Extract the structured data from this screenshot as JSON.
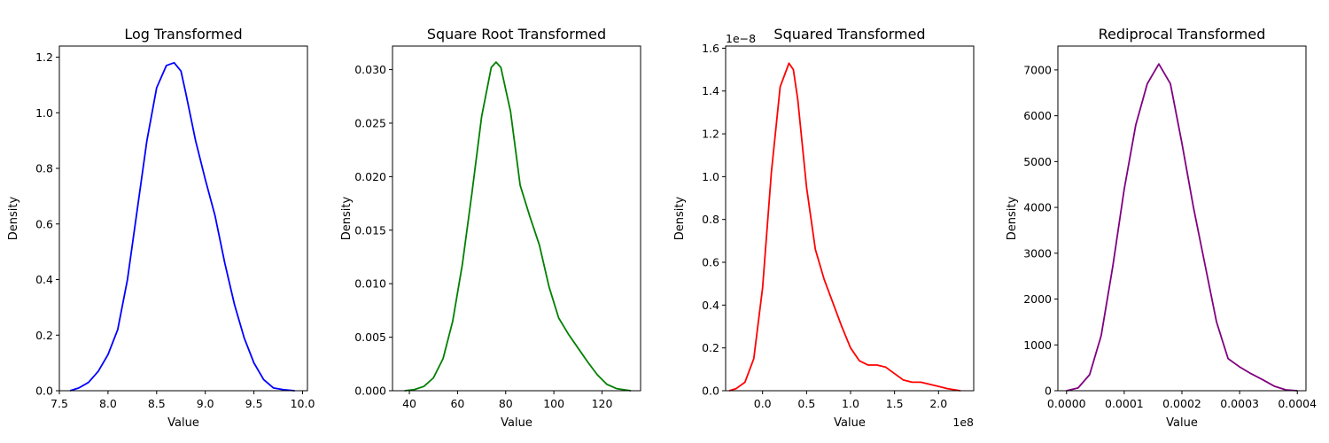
{
  "chart_data": [
    {
      "type": "line",
      "title": "Log Transformed",
      "xlabel": "Value",
      "ylabel": "Density",
      "color": "#0000ff",
      "xlim": [
        7.5,
        10.05
      ],
      "ylim": [
        0,
        1.24
      ],
      "xticks": [
        7.5,
        8.0,
        8.5,
        9.0,
        9.5,
        10.0
      ],
      "xtick_labels": [
        "7.5",
        "8.0",
        "8.5",
        "9.0",
        "9.5",
        "10.0"
      ],
      "yticks": [
        0,
        0.2,
        0.4,
        0.6,
        0.8,
        1.0,
        1.2
      ],
      "ytick_labels": [
        "0.0",
        "0.2",
        "0.4",
        "0.6",
        "0.8",
        "1.0",
        "1.2"
      ],
      "x_offset_label": "",
      "y_offset_label": "",
      "x": [
        7.61,
        7.7,
        7.8,
        7.9,
        8.0,
        8.1,
        8.2,
        8.3,
        8.4,
        8.5,
        8.6,
        8.68,
        8.75,
        8.8,
        8.9,
        9.0,
        9.1,
        9.2,
        9.3,
        9.4,
        9.5,
        9.6,
        9.7,
        9.8,
        9.92
      ],
      "y": [
        0.0,
        0.01,
        0.03,
        0.07,
        0.13,
        0.22,
        0.4,
        0.65,
        0.9,
        1.09,
        1.17,
        1.18,
        1.15,
        1.07,
        0.9,
        0.76,
        0.63,
        0.46,
        0.31,
        0.19,
        0.1,
        0.04,
        0.01,
        0.004,
        0.0
      ]
    },
    {
      "type": "line",
      "title": "Square Root Transformed",
      "xlabel": "Value",
      "ylabel": "Density",
      "color": "#008000",
      "xlim": [
        33,
        136
      ],
      "ylim": [
        0,
        0.0322
      ],
      "xticks": [
        40,
        60,
        80,
        100,
        120
      ],
      "xtick_labels": [
        "40",
        "60",
        "80",
        "100",
        "120"
      ],
      "yticks": [
        0,
        0.005,
        0.01,
        0.015,
        0.02,
        0.025,
        0.03
      ],
      "ytick_labels": [
        "0.000",
        "0.005",
        "0.010",
        "0.015",
        "0.020",
        "0.025",
        "0.030"
      ],
      "x_offset_label": "",
      "y_offset_label": "",
      "x": [
        38,
        42,
        46,
        50,
        54,
        58,
        62,
        66,
        70,
        74,
        76,
        78,
        82,
        86,
        90,
        94,
        98,
        102,
        106,
        110,
        114,
        118,
        122,
        126,
        132
      ],
      "y": [
        0.0,
        0.0001,
        0.0004,
        0.0012,
        0.003,
        0.0065,
        0.0118,
        0.0185,
        0.0256,
        0.0302,
        0.0307,
        0.0302,
        0.0261,
        0.0192,
        0.0163,
        0.0136,
        0.0097,
        0.0068,
        0.0053,
        0.004,
        0.0027,
        0.0015,
        0.0006,
        0.0002,
        0.0
      ]
    },
    {
      "type": "line",
      "title": "Squared Transformed",
      "xlabel": "Value",
      "ylabel": "Density",
      "color": "#ff0000",
      "xlim": [
        -0.42,
        2.4
      ],
      "ylim": [
        0,
        1.61
      ],
      "xticks": [
        0.0,
        0.5,
        1.0,
        1.5,
        2.0
      ],
      "xtick_labels": [
        "0.0",
        "0.5",
        "1.0",
        "1.5",
        "2.0"
      ],
      "yticks": [
        0,
        0.2,
        0.4,
        0.6,
        0.8,
        1.0,
        1.2,
        1.4,
        1.6
      ],
      "ytick_labels": [
        "0.0",
        "0.2",
        "0.4",
        "0.6",
        "0.8",
        "1.0",
        "1.2",
        "1.4",
        "1.6"
      ],
      "x_offset_label": "1e8",
      "y_offset_label": "1e−8",
      "x": [
        -0.38,
        -0.3,
        -0.2,
        -0.1,
        0.0,
        0.1,
        0.2,
        0.3,
        0.35,
        0.4,
        0.5,
        0.6,
        0.7,
        0.8,
        0.9,
        1.0,
        1.1,
        1.2,
        1.3,
        1.4,
        1.5,
        1.6,
        1.7,
        1.8,
        1.9,
        2.0,
        2.1,
        2.25
      ],
      "y": [
        0.0,
        0.01,
        0.04,
        0.15,
        0.48,
        1.02,
        1.42,
        1.53,
        1.5,
        1.36,
        0.95,
        0.66,
        0.52,
        0.41,
        0.3,
        0.2,
        0.14,
        0.12,
        0.12,
        0.11,
        0.08,
        0.05,
        0.04,
        0.04,
        0.03,
        0.02,
        0.01,
        0.0
      ]
    },
    {
      "type": "line",
      "title": "Rediprocal Transformed",
      "xlabel": "Value",
      "ylabel": "Density",
      "color": "#800080",
      "xlim": [
        -1.5e-05,
        0.000415
      ],
      "ylim": [
        0,
        7520
      ],
      "xticks": [
        0,
        0.0001,
        0.0002,
        0.0003,
        0.0004
      ],
      "xtick_labels": [
        "0.0000",
        "0.0001",
        "0.0002",
        "0.0003",
        "0.0004"
      ],
      "yticks": [
        0,
        1000,
        2000,
        3000,
        4000,
        5000,
        6000,
        7000
      ],
      "ytick_labels": [
        "0",
        "1000",
        "2000",
        "3000",
        "4000",
        "5000",
        "6000",
        "7000"
      ],
      "x_offset_label": "",
      "y_offset_label": "",
      "x": [
        0.0,
        2e-05,
        4e-05,
        6e-05,
        8e-05,
        0.0001,
        0.00012,
        0.00014,
        0.00016,
        0.00018,
        0.0002,
        0.00022,
        0.00024,
        0.00026,
        0.00028,
        0.0003,
        0.00032,
        0.00034,
        0.00036,
        0.00038,
        0.0004
      ],
      "y": [
        0,
        60,
        350,
        1200,
        2700,
        4400,
        5800,
        6700,
        7130,
        6700,
        5400,
        4000,
        2750,
        1500,
        700,
        520,
        370,
        240,
        100,
        20,
        0
      ]
    }
  ]
}
